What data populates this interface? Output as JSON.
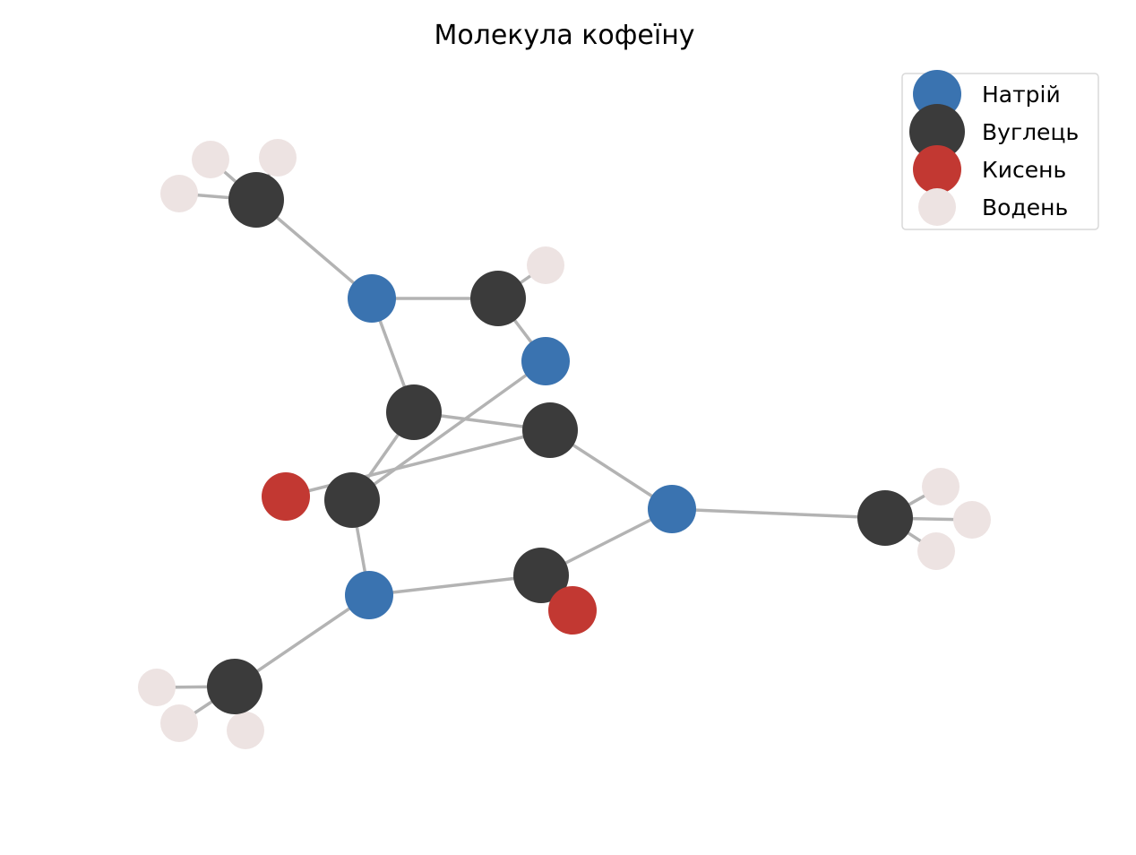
{
  "title": "Молекула кофеїну",
  "colors": {
    "bond": "#b3b3b3",
    "legend_border": "#d9d9d9"
  },
  "elements": {
    "N": {
      "label": "Натрій",
      "color": "#3a73b0",
      "size": "medium"
    },
    "C": {
      "label": "Вуглець",
      "color": "#3b3b3b",
      "size": "large"
    },
    "O": {
      "label": "Кисень",
      "color": "#c23832",
      "size": "medium"
    },
    "H": {
      "label": "Водень",
      "color": "#ede3e2",
      "size": "small"
    }
  },
  "legend": {
    "order": [
      "N",
      "C",
      "O",
      "H"
    ],
    "location": "upper right"
  },
  "atoms": [
    {
      "id": "N1",
      "el": "N"
    },
    {
      "id": "C2",
      "el": "C"
    },
    {
      "id": "O2",
      "el": "O"
    },
    {
      "id": "N3",
      "el": "N"
    },
    {
      "id": "C4",
      "el": "C"
    },
    {
      "id": "C5",
      "el": "C"
    },
    {
      "id": "C6",
      "el": "C"
    },
    {
      "id": "O6",
      "el": "O"
    },
    {
      "id": "N7",
      "el": "N"
    },
    {
      "id": "C8",
      "el": "C"
    },
    {
      "id": "N9",
      "el": "N"
    },
    {
      "id": "C10",
      "el": "C"
    },
    {
      "id": "C11",
      "el": "C"
    },
    {
      "id": "C12",
      "el": "C"
    },
    {
      "id": "H8",
      "el": "H"
    },
    {
      "id": "H10a",
      "el": "H"
    },
    {
      "id": "H10b",
      "el": "H"
    },
    {
      "id": "H10c",
      "el": "H"
    },
    {
      "id": "H11a",
      "el": "H"
    },
    {
      "id": "H11b",
      "el": "H"
    },
    {
      "id": "H11c",
      "el": "H"
    },
    {
      "id": "H12a",
      "el": "H"
    },
    {
      "id": "H12b",
      "el": "H"
    },
    {
      "id": "H12c",
      "el": "H"
    }
  ],
  "bonds": [
    [
      "N1",
      "C2"
    ],
    [
      "C2",
      "O2"
    ],
    [
      "C2",
      "N3"
    ],
    [
      "N3",
      "C4"
    ],
    [
      "C4",
      "C5"
    ],
    [
      "C5",
      "C6"
    ],
    [
      "C6",
      "O6"
    ],
    [
      "C6",
      "N1"
    ],
    [
      "C5",
      "N7"
    ],
    [
      "N7",
      "C8"
    ],
    [
      "C8",
      "N9"
    ],
    [
      "N9",
      "C4"
    ],
    [
      "N1",
      "C10"
    ],
    [
      "N3",
      "C11"
    ],
    [
      "N7",
      "C12"
    ],
    [
      "C8",
      "H8"
    ],
    [
      "C10",
      "H10a"
    ],
    [
      "C10",
      "H10b"
    ],
    [
      "C10",
      "H10c"
    ],
    [
      "C11",
      "H11a"
    ],
    [
      "C11",
      "H11b"
    ],
    [
      "C11",
      "H11c"
    ],
    [
      "C12",
      "H12a"
    ],
    [
      "C12",
      "H12b"
    ],
    [
      "C12",
      "H12c"
    ]
  ]
}
